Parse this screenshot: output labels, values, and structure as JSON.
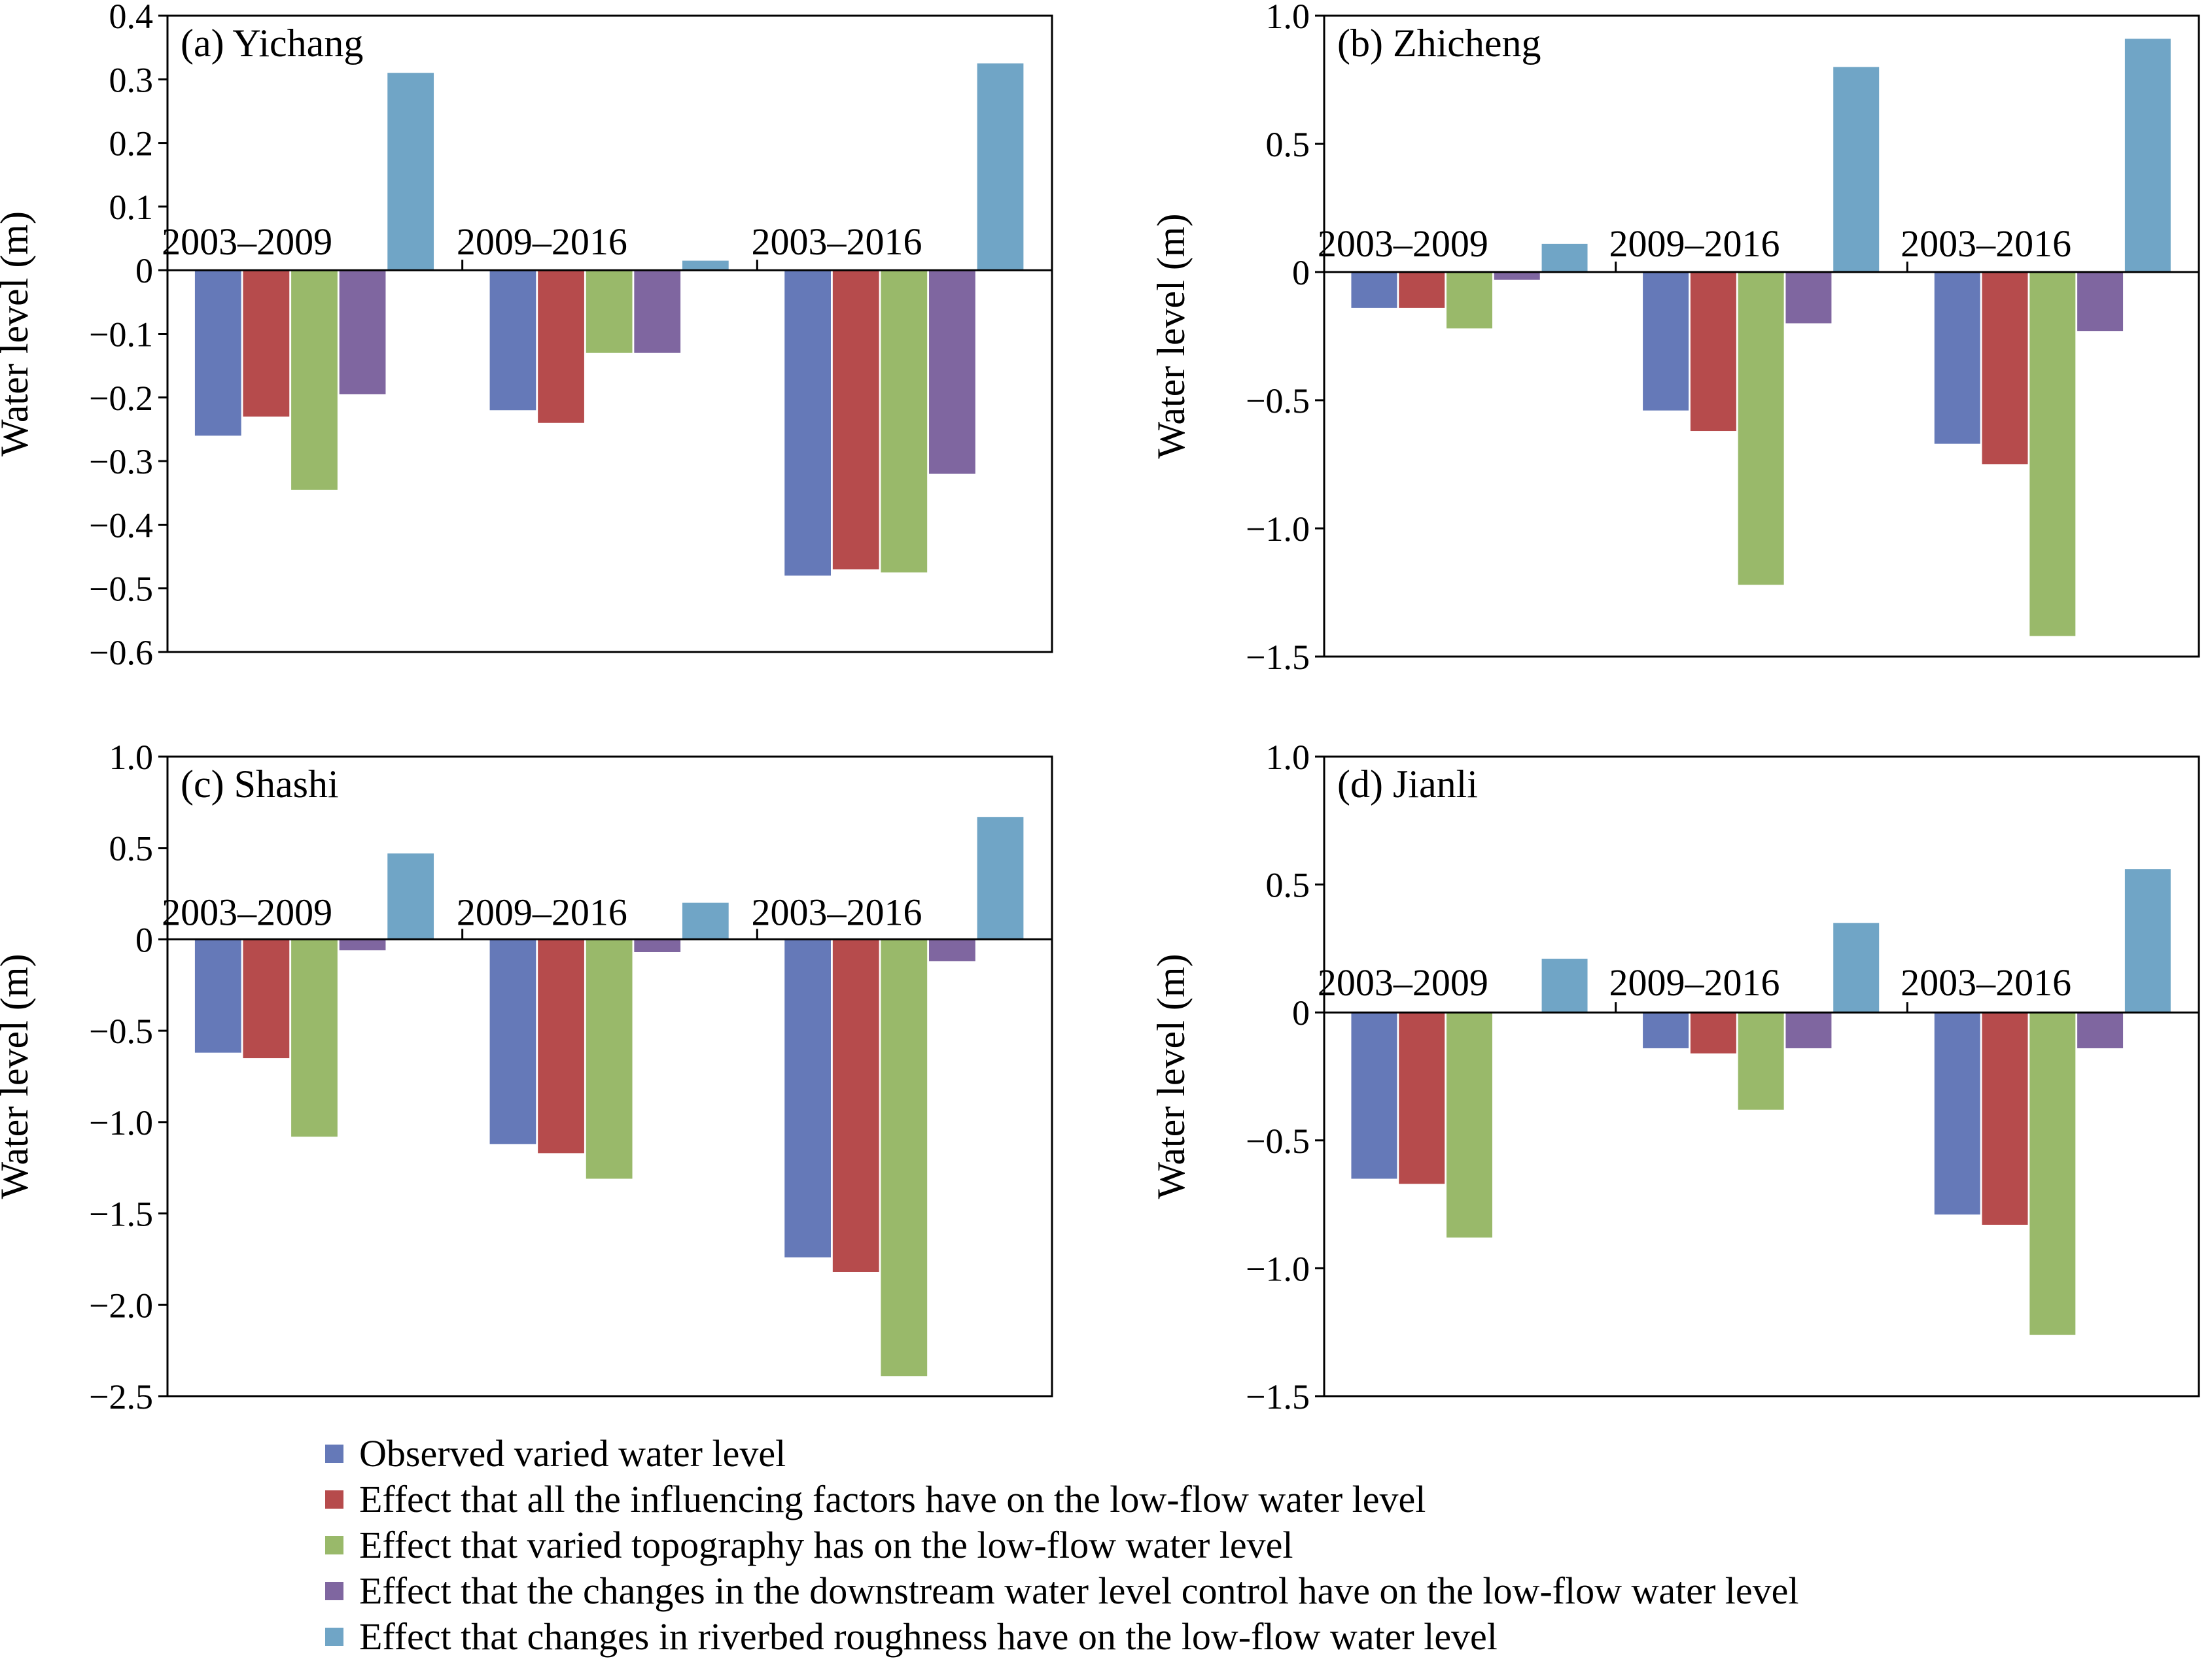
{
  "colors": {
    "observed": "#6579b8",
    "all_factors": "#b64b4c",
    "topography": "#99b96a",
    "downstream": "#7f66a0",
    "roughness": "#70a5c6"
  },
  "legend": [
    {
      "key": "observed",
      "label": "Observed varied water level"
    },
    {
      "key": "all_factors",
      "label": "Effect that all the influencing factors have on the low-flow water level"
    },
    {
      "key": "topography",
      "label": "Effect that varied topography has on the low-flow water level"
    },
    {
      "key": "downstream",
      "label": "Effect that the changes in the downstream water level control have on the low-flow water level"
    },
    {
      "key": "roughness",
      "label": "Effect that changes in riverbed roughness have on the low-flow water level"
    }
  ],
  "chart_data": [
    {
      "type": "bar",
      "title": "(a) Yichang",
      "ylabel": "Water level (m)",
      "ylim": [
        -0.6,
        0.4
      ],
      "yticks": [
        0.4,
        0.3,
        0.2,
        0.1,
        0,
        -0.1,
        -0.2,
        -0.3,
        -0.4,
        -0.5,
        -0.6
      ],
      "ytick_labels": [
        "0.4",
        "0.3",
        "0.2",
        "0.1",
        "0",
        "−0.1",
        "−0.2",
        "−0.3",
        "−0.4",
        "−0.5",
        "−0.6"
      ],
      "categories": [
        "2003–2009",
        "2009–2016",
        "2003–2016"
      ],
      "series": [
        {
          "name": "Observed varied water level",
          "values": [
            -0.26,
            -0.22,
            -0.48
          ]
        },
        {
          "name": "Effect that all the influencing factors have on the low-flow water level",
          "values": [
            -0.23,
            -0.24,
            -0.47
          ]
        },
        {
          "name": "Effect that varied topography has on the low-flow water level",
          "values": [
            -0.345,
            -0.13,
            -0.475
          ]
        },
        {
          "name": "Effect that the changes in the downstream water level control have on the low-flow water level",
          "values": [
            -0.195,
            -0.13,
            -0.32
          ]
        },
        {
          "name": "Effect that changes in riverbed roughness have on the low-flow water level",
          "values": [
            0.31,
            0.015,
            0.325
          ]
        }
      ]
    },
    {
      "type": "bar",
      "title": "(b) Zhicheng",
      "ylabel": "Water level (m)",
      "ylim": [
        -1.5,
        1.0
      ],
      "yticks": [
        1.0,
        0.5,
        0,
        -0.5,
        -1.0,
        -1.5
      ],
      "ytick_labels": [
        "1.0",
        "0.5",
        "0",
        "−0.5",
        "−1.0",
        "−1.5"
      ],
      "categories": [
        "2003–2009",
        "2009–2016",
        "2003–2016"
      ],
      "series": [
        {
          "name": "Observed varied water level",
          "values": [
            -0.14,
            -0.54,
            -0.67
          ]
        },
        {
          "name": "Effect that all the influencing factors have on the low-flow water level",
          "values": [
            -0.14,
            -0.62,
            -0.75
          ]
        },
        {
          "name": "Effect that varied topography has on the low-flow water level",
          "values": [
            -0.22,
            -1.22,
            -1.42
          ]
        },
        {
          "name": "Effect that the changes in the downstream water level control have on the low-flow water level",
          "values": [
            -0.03,
            -0.2,
            -0.23
          ]
        },
        {
          "name": "Effect that changes in riverbed roughness have on the low-flow water level",
          "values": [
            0.11,
            0.8,
            0.91
          ]
        }
      ]
    },
    {
      "type": "bar",
      "title": "(c) Shashi",
      "ylabel": "Water level (m)",
      "ylim": [
        -2.5,
        1.0
      ],
      "yticks": [
        1.0,
        0.5,
        0,
        -0.5,
        -1.0,
        -1.5,
        -2.0,
        -2.5
      ],
      "ytick_labels": [
        "1.0",
        "0.5",
        "0",
        "−0.5",
        "−1.0",
        "−1.5",
        "−2.0",
        "−2.5"
      ],
      "categories": [
        "2003–2009",
        "2009–2016",
        "2003–2016"
      ],
      "series": [
        {
          "name": "Observed varied water level",
          "values": [
            -0.62,
            -1.12,
            -1.74
          ]
        },
        {
          "name": "Effect that all the influencing factors have on the low-flow water level",
          "values": [
            -0.65,
            -1.17,
            -1.82
          ]
        },
        {
          "name": "Effect that varied topography has on the low-flow water level",
          "values": [
            -1.08,
            -1.31,
            -2.39
          ]
        },
        {
          "name": "Effect that the changes in the downstream water level control have on the low-flow water level",
          "values": [
            -0.06,
            -0.07,
            -0.12
          ]
        },
        {
          "name": "Effect that changes in riverbed roughness have on the low-flow water level",
          "values": [
            0.47,
            0.2,
            0.67
          ]
        }
      ]
    },
    {
      "type": "bar",
      "title": "(d) Jianli",
      "ylabel": "Water level (m)",
      "ylim": [
        -1.5,
        1.0
      ],
      "yticks": [
        1.0,
        0.5,
        0,
        -0.5,
        -1.0,
        -1.5
      ],
      "ytick_labels": [
        "1.0",
        "0.5",
        "0",
        "−0.5",
        "−1.0",
        "−1.5"
      ],
      "categories": [
        "2003–2009",
        "2009–2016",
        "2003–2016"
      ],
      "series": [
        {
          "name": "Observed varied water level",
          "values": [
            -0.65,
            -0.14,
            -0.79
          ]
        },
        {
          "name": "Effect that all the influencing factors have on the low-flow water level",
          "values": [
            -0.67,
            -0.16,
            -0.83
          ]
        },
        {
          "name": "Effect that varied topography has on the low-flow water level",
          "values": [
            -0.88,
            -0.38,
            -1.26
          ]
        },
        {
          "name": "Effect that the changes in the downstream water level control have on the low-flow water level",
          "values": [
            0,
            -0.14,
            -0.14
          ]
        },
        {
          "name": "Effect that changes in riverbed roughness have on the low-flow water level",
          "values": [
            0.21,
            0.35,
            0.56
          ]
        }
      ]
    }
  ]
}
